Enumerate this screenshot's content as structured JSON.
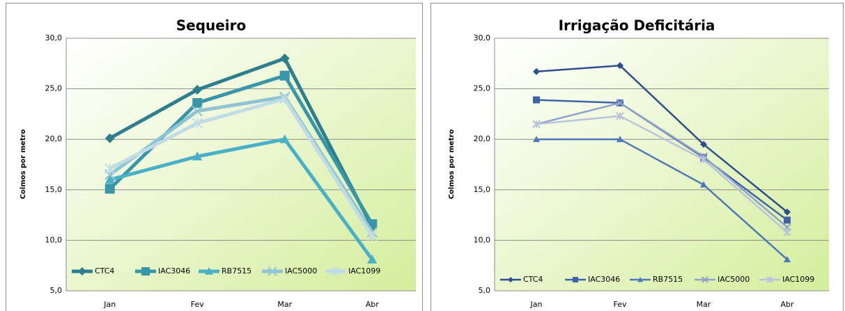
{
  "chart_data": [
    {
      "type": "line",
      "title": "Sequeiro",
      "y_label": "Colmos por metro",
      "categories": [
        "Jan",
        "Fev",
        "Mar",
        "Abr"
      ],
      "ylim": [
        5,
        30
      ],
      "yticks": [
        {
          "value": 5,
          "label": "5,0"
        },
        {
          "value": 10,
          "label": "10,0"
        },
        {
          "value": 15,
          "label": "15,0"
        },
        {
          "value": 20,
          "label": "20,0"
        },
        {
          "value": 25,
          "label": "25,0"
        },
        {
          "value": 30,
          "label": "30,0"
        }
      ],
      "grid": true,
      "series": [
        {
          "name": "CTC4",
          "color": "#2e7e8e",
          "values": [
            20.1,
            24.9,
            28.0,
            11.3
          ]
        },
        {
          "name": "IAC3046",
          "color": "#3896a8",
          "values": [
            15.1,
            23.6,
            26.3,
            11.6
          ]
        },
        {
          "name": "RB7515",
          "color": "#4ab0c8",
          "values": [
            16.0,
            18.3,
            20.0,
            8.1
          ]
        },
        {
          "name": "IAC5000",
          "color": "#8ec4d4",
          "values": [
            16.5,
            22.8,
            24.2,
            10.8
          ]
        },
        {
          "name": "IAC1099",
          "color": "#c2dce6",
          "values": [
            17.1,
            21.6,
            24.0,
            10.4
          ]
        }
      ]
    },
    {
      "type": "line",
      "title": "Irrigação Deficitária",
      "y_label": "Colmos por metro",
      "categories": [
        "Jan",
        "Fev",
        "Mar",
        "Abr"
      ],
      "ylim": [
        5,
        30
      ],
      "yticks": [
        {
          "value": 5,
          "label": "5,0"
        },
        {
          "value": 10,
          "label": "10,0"
        },
        {
          "value": 15,
          "label": "15,0"
        },
        {
          "value": 20,
          "label": "20,0"
        },
        {
          "value": 25,
          "label": "25,0"
        },
        {
          "value": 30,
          "label": "30,0"
        }
      ],
      "grid": true,
      "series": [
        {
          "name": "CTC4",
          "color": "#2f4e8e",
          "values": [
            26.7,
            27.3,
            19.5,
            12.8
          ]
        },
        {
          "name": "IAC3046",
          "color": "#3e63a8",
          "values": [
            23.9,
            23.6,
            18.2,
            12.0
          ]
        },
        {
          "name": "RB7515",
          "color": "#4f78b8",
          "values": [
            20.0,
            20.0,
            15.5,
            8.1
          ]
        },
        {
          "name": "IAC5000",
          "color": "#8ea2cc",
          "values": [
            21.5,
            23.6,
            18.3,
            11.3
          ]
        },
        {
          "name": "IAC1099",
          "color": "#b9c4dc",
          "values": [
            21.5,
            22.3,
            18.0,
            10.8
          ]
        }
      ]
    }
  ]
}
